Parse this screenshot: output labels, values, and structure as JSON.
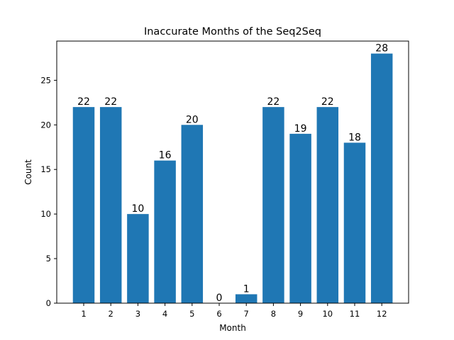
{
  "chart_data": {
    "type": "bar",
    "title": "Inaccurate Months of the Seq2Seq",
    "xlabel": "Month",
    "ylabel": "Count",
    "categories": [
      "1",
      "2",
      "3",
      "4",
      "5",
      "6",
      "7",
      "8",
      "9",
      "10",
      "11",
      "12"
    ],
    "values": [
      22,
      22,
      10,
      16,
      20,
      0,
      1,
      22,
      19,
      22,
      18,
      28
    ],
    "ylim": [
      0,
      29.4
    ],
    "yticks": [
      0,
      5,
      10,
      15,
      20,
      25
    ],
    "bar_color": "#1f77b4",
    "grid": false,
    "data_labels": true
  }
}
